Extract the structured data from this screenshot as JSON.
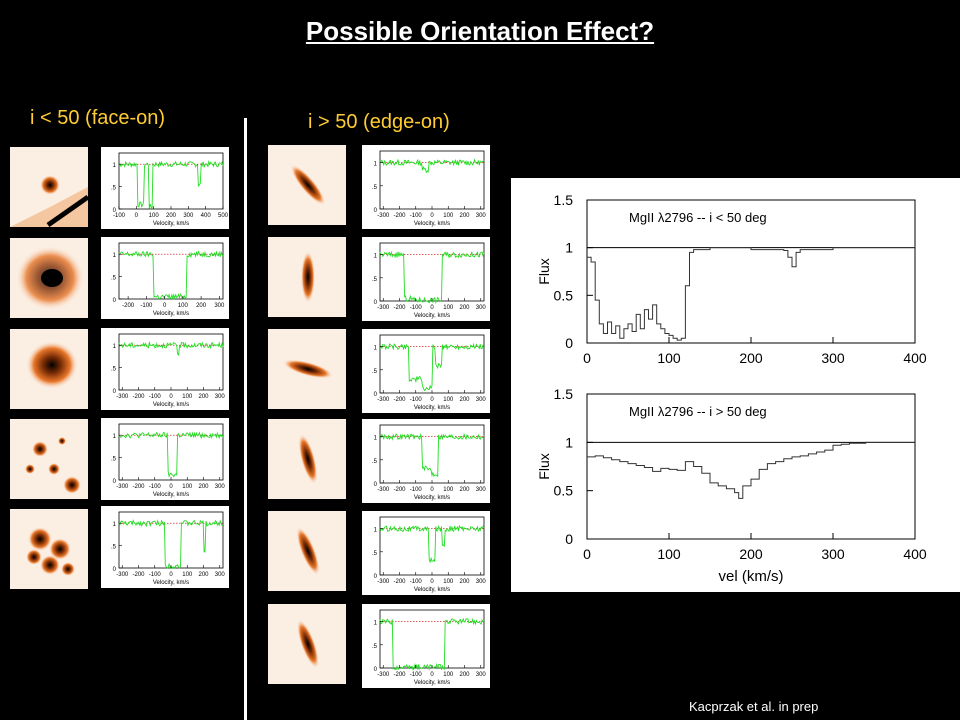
{
  "title": "Possible Orientation Effect?",
  "left_header": "i < 50 (face-on)",
  "right_header": "i > 50 (edge-on)",
  "credit": "Kacprzak et al.  in prep",
  "colors": {
    "spectrum": "#22dd22",
    "continuum": "#cc0000",
    "galaxy": "#e8772a",
    "header": "#ffcc33"
  },
  "galaxy_images": {
    "left": [
      "compact-bright-galaxy",
      "spiral-galaxy",
      "elliptical-galaxy",
      "clumpy-galaxy",
      "irregular-galaxy"
    ],
    "right": [
      "edge-on-galaxy",
      "edge-on-galaxy",
      "edge-on-galaxy",
      "edge-on-galaxy",
      "edge-on-galaxy",
      "edge-on-galaxy"
    ]
  },
  "small_spectra": {
    "xlabel": "Velocity, km/s",
    "y_ticks": [
      "1",
      ".5",
      "0"
    ],
    "left": [
      {
        "x_ticks": [
          "-100",
          "0",
          "100",
          "200",
          "300",
          "400",
          "500"
        ],
        "xlim": [
          -100,
          500
        ]
      },
      {
        "x_ticks": [
          "-200",
          "-100",
          "0",
          "100",
          "200",
          "300"
        ],
        "xlim": [
          -250,
          320
        ]
      },
      {
        "x_ticks": [
          "-300",
          "-200",
          "-100",
          "0",
          "100",
          "200",
          "300"
        ],
        "xlim": [
          -320,
          320
        ]
      },
      {
        "x_ticks": [
          "-300",
          "-200",
          "-100",
          "0",
          "100",
          "200",
          "300"
        ],
        "xlim": [
          -320,
          320
        ]
      },
      {
        "x_ticks": [
          "-300",
          "-200",
          "-100",
          "0",
          "100",
          "200",
          "300"
        ],
        "xlim": [
          -320,
          320
        ]
      }
    ],
    "right": [
      {
        "x_ticks": [
          "-300",
          "-200",
          "-100",
          "0",
          "100",
          "200",
          "300"
        ],
        "xlim": [
          -320,
          320
        ]
      },
      {
        "x_ticks": [
          "-300",
          "-200",
          "-100",
          "0",
          "100",
          "200",
          "300"
        ],
        "xlim": [
          -320,
          320
        ]
      },
      {
        "x_ticks": [
          "-300",
          "-200",
          "-100",
          "0",
          "100",
          "200",
          "300"
        ],
        "xlim": [
          -320,
          320
        ]
      },
      {
        "x_ticks": [
          "-300",
          "-200",
          "-100",
          "0",
          "100",
          "200",
          "300"
        ],
        "xlim": [
          -320,
          320
        ]
      },
      {
        "x_ticks": [
          "-300",
          "-200",
          "-100",
          "0",
          "100",
          "200",
          "300"
        ],
        "xlim": [
          -320,
          320
        ]
      },
      {
        "x_ticks": [
          "-300",
          "-200",
          "-100",
          "0",
          "100",
          "200",
          "300"
        ],
        "xlim": [
          -320,
          320
        ]
      }
    ]
  },
  "chart_data": [
    {
      "type": "line",
      "label": "MgII λ2796 -- i < 50 deg",
      "xlabel": "",
      "ylabel": "Flux",
      "xlim": [
        0,
        400
      ],
      "ylim": [
        0,
        1.5
      ],
      "x_ticks": [
        "0",
        "100",
        "200",
        "300",
        "400"
      ],
      "y_ticks": [
        "0",
        "0.5",
        "1",
        "1.5"
      ],
      "continuum": 1,
      "x": [
        0,
        5,
        10,
        15,
        20,
        25,
        30,
        35,
        40,
        45,
        50,
        55,
        60,
        65,
        70,
        75,
        80,
        85,
        90,
        95,
        100,
        105,
        110,
        115,
        120,
        125,
        130,
        150,
        200,
        240,
        245,
        250,
        255,
        260,
        300,
        350,
        400
      ],
      "y": [
        0.9,
        0.85,
        0.45,
        0.2,
        0.1,
        0.22,
        0.1,
        0.18,
        0.05,
        0.15,
        0.2,
        0.12,
        0.3,
        0.15,
        0.35,
        0.25,
        0.4,
        0.2,
        0.15,
        0.1,
        0.08,
        0.05,
        0.03,
        0.05,
        0.6,
        0.95,
        0.98,
        1.0,
        0.98,
        0.97,
        0.9,
        0.8,
        0.95,
        0.98,
        1.0,
        1.0,
        1.0
      ]
    },
    {
      "type": "line",
      "label": "MgII λ2796 -- i > 50 deg",
      "xlabel": "vel (km/s)",
      "ylabel": "Flux",
      "xlim": [
        0,
        400
      ],
      "ylim": [
        0,
        1.5
      ],
      "x_ticks": [
        "0",
        "100",
        "200",
        "300",
        "400"
      ],
      "y_ticks": [
        "0",
        "0.5",
        "1",
        "1.5"
      ],
      "continuum": 1,
      "x": [
        0,
        10,
        20,
        30,
        40,
        50,
        60,
        70,
        80,
        90,
        100,
        110,
        120,
        130,
        140,
        150,
        160,
        170,
        180,
        185,
        190,
        200,
        210,
        220,
        230,
        240,
        250,
        260,
        270,
        280,
        290,
        300,
        310,
        320,
        340,
        360,
        380,
        400
      ],
      "y": [
        0.85,
        0.86,
        0.84,
        0.82,
        0.8,
        0.78,
        0.76,
        0.74,
        0.7,
        0.73,
        0.72,
        0.71,
        0.8,
        0.75,
        0.68,
        0.58,
        0.55,
        0.52,
        0.48,
        0.42,
        0.55,
        0.62,
        0.72,
        0.78,
        0.8,
        0.83,
        0.85,
        0.86,
        0.88,
        0.9,
        0.92,
        0.97,
        0.98,
        0.99,
        1.0,
        1.0,
        1.0,
        1.0
      ]
    }
  ]
}
